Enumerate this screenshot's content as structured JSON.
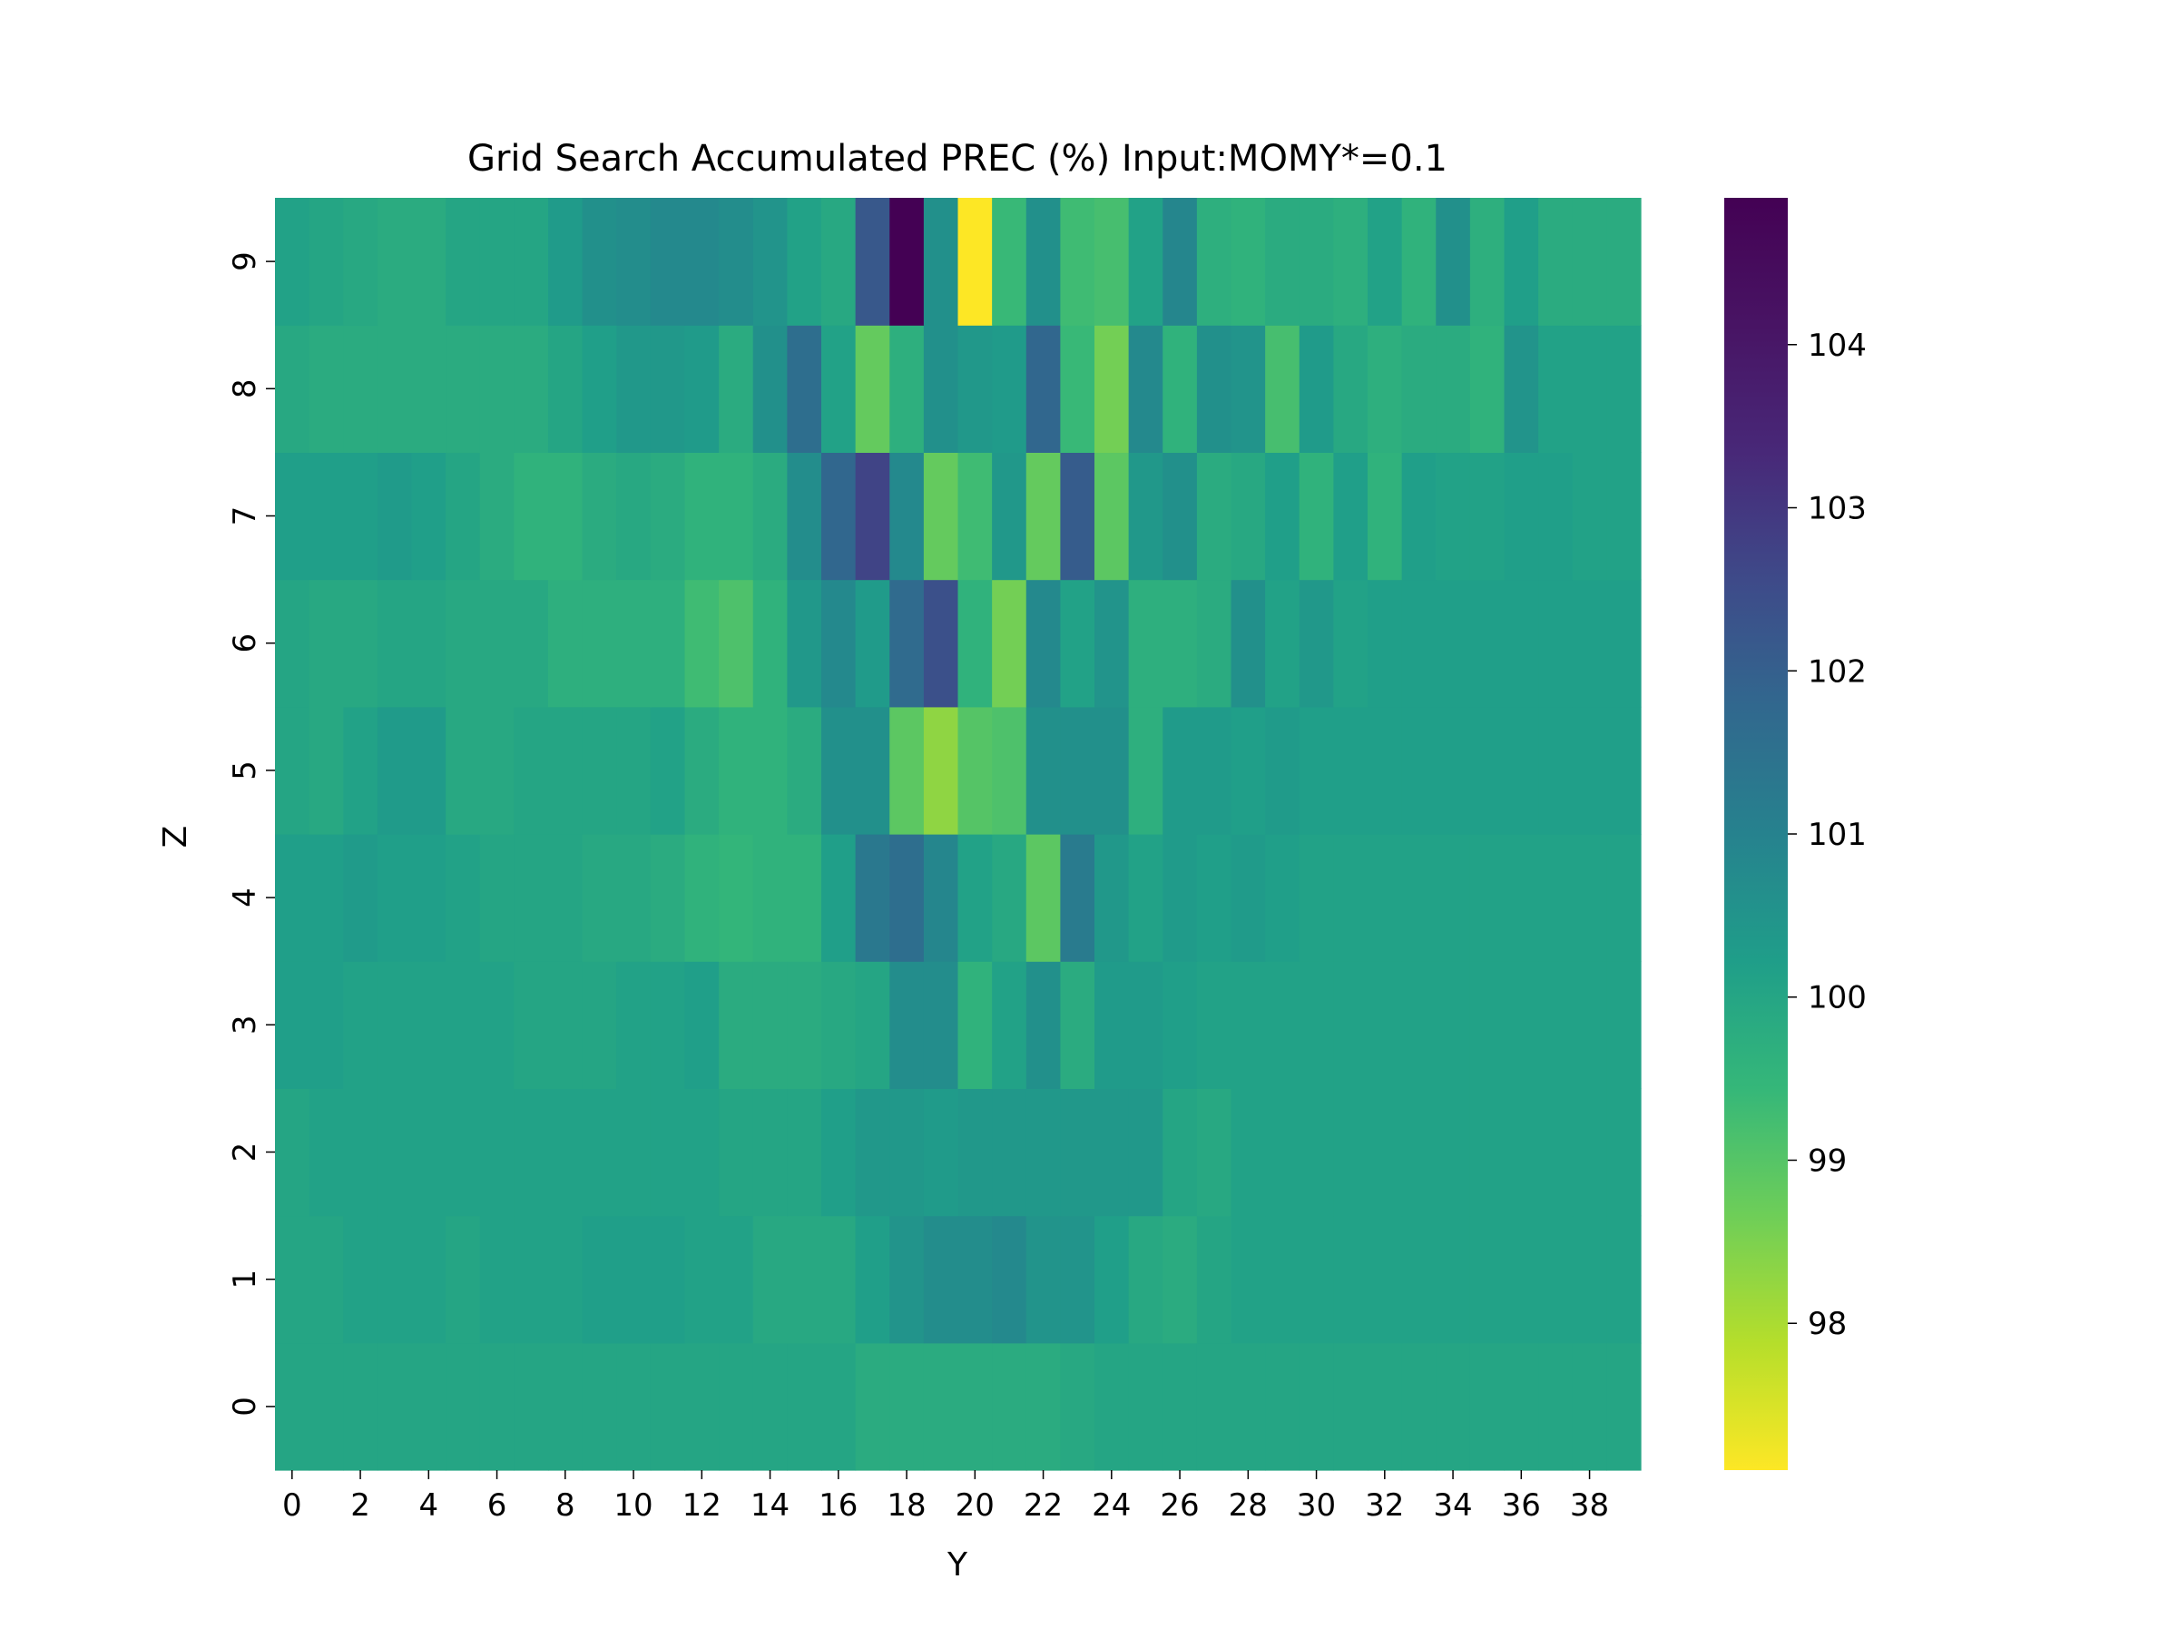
{
  "chart_data": {
    "type": "heatmap",
    "title": "Grid Search Accumulated PREC (%) Input:MOMY*=0.1",
    "xlabel": "Y",
    "ylabel": "Z",
    "x_ticks": [
      "0",
      "2",
      "4",
      "6",
      "8",
      "10",
      "12",
      "14",
      "16",
      "18",
      "20",
      "22",
      "24",
      "26",
      "28",
      "30",
      "32",
      "34",
      "36",
      "38"
    ],
    "y_ticks": [
      "0",
      "1",
      "2",
      "3",
      "4",
      "5",
      "6",
      "7",
      "8",
      "9"
    ],
    "x_count": 40,
    "y_count": 10,
    "colormap": "viridis_r",
    "vmin": 97.1,
    "vmax": 104.9,
    "colorbar_ticks": [
      "98",
      "99",
      "100",
      "101",
      "102",
      "103",
      "104"
    ],
    "grid": false,
    "values": [
      [
        100.0,
        100.0,
        100.0,
        100.0,
        100.0,
        100.0,
        100.0,
        100.0,
        100.0,
        100.0,
        100.0,
        100.0,
        100.0,
        100.0,
        100.0,
        100.0,
        100.0,
        99.8,
        99.8,
        99.8,
        99.8,
        99.8,
        99.8,
        99.9,
        100.0,
        100.0,
        100.0,
        100.0,
        100.0,
        100.0,
        100.0,
        100.0,
        100.0,
        100.0,
        100.0,
        100.0,
        100.0,
        100.0,
        100.0,
        100.0
      ],
      [
        100.0,
        100.0,
        100.1,
        100.1,
        100.1,
        100.0,
        100.1,
        100.1,
        100.1,
        100.2,
        100.2,
        100.2,
        100.1,
        100.1,
        99.9,
        99.9,
        99.9,
        100.2,
        100.5,
        100.7,
        100.7,
        100.8,
        100.5,
        100.5,
        100.2,
        99.9,
        99.8,
        100.0,
        100.1,
        100.1,
        100.1,
        100.1,
        100.1,
        100.1,
        100.1,
        100.1,
        100.1,
        100.1,
        100.1,
        100.1
      ],
      [
        100.0,
        100.1,
        100.1,
        100.1,
        100.1,
        100.1,
        100.1,
        100.1,
        100.1,
        100.1,
        100.1,
        100.1,
        100.1,
        100.0,
        100.0,
        100.0,
        100.2,
        100.4,
        100.4,
        100.3,
        100.4,
        100.4,
        100.4,
        100.4,
        100.4,
        100.4,
        100.0,
        99.9,
        100.1,
        100.1,
        100.1,
        100.1,
        100.1,
        100.1,
        100.1,
        100.1,
        100.1,
        100.1,
        100.1,
        100.1
      ],
      [
        100.2,
        100.2,
        100.1,
        100.1,
        100.1,
        100.1,
        100.1,
        100.0,
        100.0,
        100.0,
        100.1,
        100.1,
        100.2,
        99.8,
        99.8,
        99.8,
        99.9,
        100.0,
        100.7,
        100.7,
        99.6,
        100.1,
        100.6,
        99.8,
        100.3,
        100.3,
        100.2,
        100.1,
        100.1,
        100.1,
        100.1,
        100.1,
        100.1,
        100.1,
        100.1,
        100.1,
        100.1,
        100.1,
        100.1,
        100.1
      ],
      [
        100.2,
        100.2,
        100.3,
        100.2,
        100.2,
        100.1,
        100.0,
        100.0,
        100.0,
        99.9,
        99.9,
        99.8,
        99.6,
        99.5,
        99.6,
        99.6,
        100.2,
        101.3,
        101.6,
        100.9,
        100.1,
        99.9,
        98.9,
        101.2,
        100.4,
        100.1,
        100.3,
        100.2,
        100.3,
        100.2,
        100.1,
        100.1,
        100.1,
        100.1,
        100.1,
        100.1,
        100.1,
        100.1,
        100.1,
        100.1
      ],
      [
        100.0,
        99.9,
        100.1,
        100.3,
        100.3,
        99.9,
        99.9,
        100.0,
        100.0,
        100.0,
        100.0,
        100.1,
        99.8,
        99.6,
        99.6,
        99.8,
        100.6,
        100.6,
        98.9,
        98.3,
        99.0,
        99.1,
        100.6,
        100.6,
        100.6,
        99.7,
        100.3,
        100.3,
        100.2,
        100.3,
        100.2,
        100.2,
        100.2,
        100.2,
        100.2,
        100.2,
        100.2,
        100.2,
        100.2,
        100.2
      ],
      [
        100.0,
        99.9,
        99.9,
        100.0,
        100.0,
        99.9,
        99.9,
        99.9,
        99.7,
        99.7,
        99.7,
        99.7,
        99.3,
        99.1,
        99.6,
        100.4,
        100.8,
        100.3,
        101.7,
        102.4,
        99.6,
        98.6,
        100.8,
        100.1,
        100.5,
        99.7,
        99.7,
        99.8,
        100.6,
        100.1,
        100.4,
        100.1,
        100.2,
        100.2,
        100.2,
        100.2,
        100.2,
        100.2,
        100.2,
        100.2
      ],
      [
        100.2,
        100.2,
        100.2,
        100.3,
        100.2,
        100.0,
        99.8,
        99.6,
        99.6,
        99.8,
        99.9,
        99.8,
        99.6,
        99.6,
        99.8,
        100.7,
        101.8,
        102.7,
        100.8,
        98.8,
        99.3,
        100.4,
        98.8,
        102.1,
        98.9,
        100.4,
        100.6,
        99.8,
        99.9,
        100.2,
        99.6,
        100.2,
        99.6,
        100.2,
        100.1,
        100.1,
        100.2,
        100.2,
        100.1,
        100.1
      ],
      [
        99.9,
        99.8,
        99.8,
        99.8,
        99.8,
        99.8,
        99.8,
        99.8,
        100.0,
        100.2,
        100.4,
        100.4,
        100.3,
        99.8,
        100.6,
        101.6,
        100.1,
        98.8,
        99.7,
        100.6,
        100.4,
        100.3,
        101.8,
        99.4,
        98.6,
        100.8,
        99.6,
        100.6,
        100.5,
        99.2,
        100.3,
        99.9,
        99.7,
        99.8,
        99.8,
        99.6,
        100.5,
        100.1,
        100.1,
        100.1
      ],
      [
        100.1,
        100.0,
        99.9,
        99.8,
        99.8,
        100.0,
        100.0,
        100.0,
        100.3,
        100.6,
        100.7,
        100.8,
        100.8,
        100.7,
        100.5,
        100.1,
        99.9,
        102.2,
        104.9,
        100.6,
        97.1,
        99.4,
        100.6,
        99.3,
        99.2,
        100.1,
        100.9,
        99.7,
        99.6,
        99.8,
        99.8,
        99.7,
        100.1,
        99.6,
        100.6,
        99.7,
        100.2,
        99.8,
        99.8,
        99.8
      ]
    ]
  }
}
